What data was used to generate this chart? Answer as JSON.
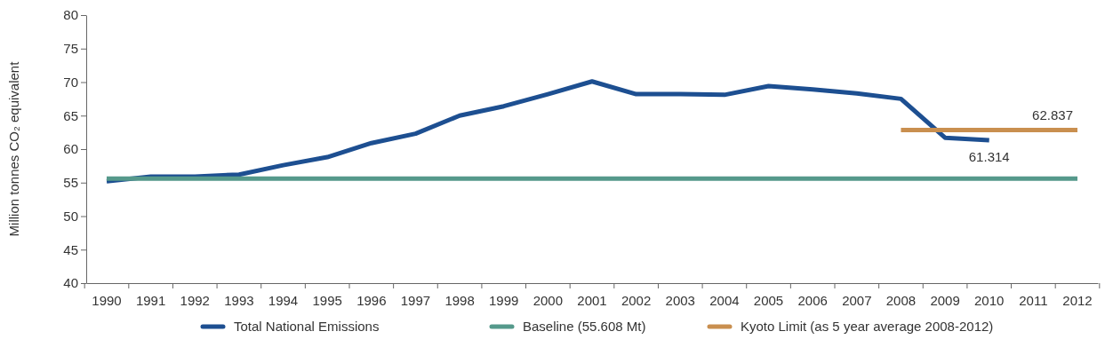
{
  "chart_data": {
    "type": "line",
    "ylabel": "Million tonnes CO₂ equivalent",
    "categories": [
      "1990",
      "1991",
      "1992",
      "1993",
      "1994",
      "1995",
      "1996",
      "1997",
      "1998",
      "1999",
      "2000",
      "2001",
      "2002",
      "2003",
      "2004",
      "2005",
      "2006",
      "2007",
      "2008",
      "2009",
      "2010",
      "2011",
      "2012"
    ],
    "ylim": [
      40,
      80
    ],
    "yticks": [
      40,
      45,
      50,
      55,
      60,
      65,
      70,
      75,
      80
    ],
    "grid": false,
    "legend": "bottom",
    "marker": "none",
    "line_style": "solid",
    "series": [
      {
        "name": "Total National Emissions",
        "color": "#1d4f91",
        "values": [
          55.2,
          55.9,
          55.9,
          56.2,
          57.6,
          58.8,
          60.9,
          62.3,
          65.0,
          66.4,
          68.2,
          70.1,
          68.2,
          68.2,
          68.1,
          69.4,
          68.9,
          68.3,
          67.5,
          61.7,
          61.314,
          null,
          null
        ],
        "value_labels": [
          null,
          null,
          null,
          null,
          null,
          null,
          null,
          null,
          null,
          null,
          null,
          null,
          null,
          null,
          null,
          null,
          null,
          null,
          null,
          null,
          "61.314",
          null,
          null
        ]
      },
      {
        "name": "Baseline (55.608 Mt)",
        "color": "#55998b",
        "values": [
          55.608,
          55.608,
          55.608,
          55.608,
          55.608,
          55.608,
          55.608,
          55.608,
          55.608,
          55.608,
          55.608,
          55.608,
          55.608,
          55.608,
          55.608,
          55.608,
          55.608,
          55.608,
          55.608,
          55.608,
          55.608,
          55.608,
          55.608
        ]
      },
      {
        "name": "Kyoto Limit (as 5 year average 2008-2012)",
        "color": "#c98f4f",
        "values": [
          null,
          null,
          null,
          null,
          null,
          null,
          null,
          null,
          null,
          null,
          null,
          null,
          null,
          null,
          null,
          null,
          null,
          null,
          62.837,
          62.837,
          62.837,
          62.837,
          62.837
        ],
        "value_labels": [
          null,
          null,
          null,
          null,
          null,
          null,
          null,
          null,
          null,
          null,
          null,
          null,
          null,
          null,
          null,
          null,
          null,
          null,
          null,
          null,
          null,
          null,
          "62.837"
        ]
      }
    ]
  }
}
